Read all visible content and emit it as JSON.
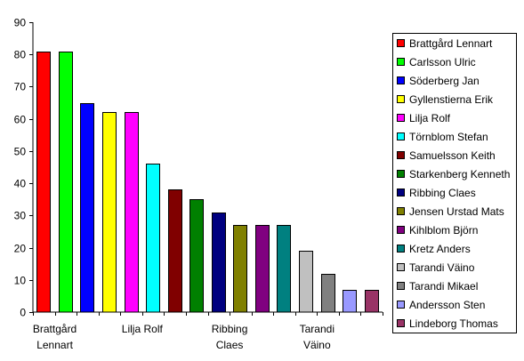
{
  "chart_data": {
    "type": "bar",
    "title": "",
    "xlabel": "",
    "ylabel": "",
    "ylim": [
      0,
      90
    ],
    "yticks": [
      0,
      10,
      20,
      30,
      40,
      50,
      60,
      70,
      80,
      90
    ],
    "grid": false,
    "legend_position": "right",
    "categories": [
      "Brattgård Lennart",
      "Carlsson Ulric",
      "Söderberg Jan",
      "Gyllenstierna Erik",
      "Lilja Rolf",
      "Törnblom Stefan",
      "Samuelsson Keith",
      "Starkenberg Kenneth",
      "Ribbing Claes",
      "Jensen Urstad Mats",
      "Kihlblom Björn",
      "Kretz Anders",
      "Tarandi Väino",
      "Tarandi Mikael",
      "Andersson Sten",
      "Lindeborg Thomas"
    ],
    "values": [
      81,
      81,
      65,
      62,
      62,
      46,
      38,
      35,
      31,
      27,
      27,
      27,
      19,
      12,
      7,
      7
    ],
    "colors": [
      "#ff0000",
      "#00ff00",
      "#0000ff",
      "#ffff00",
      "#ff00ff",
      "#00ffff",
      "#800000",
      "#008000",
      "#000080",
      "#808000",
      "#800080",
      "#008080",
      "#c0c0c0",
      "#808080",
      "#9999ff",
      "#993366"
    ],
    "x_tick_labels": [
      {
        "index": 0,
        "lines": [
          "Brattgård",
          "Lennart"
        ]
      },
      {
        "index": 4,
        "lines": [
          "Lilja Rolf"
        ]
      },
      {
        "index": 8,
        "lines": [
          "Ribbing",
          "Claes"
        ]
      },
      {
        "index": 12,
        "lines": [
          "Tarandi",
          "Väino"
        ]
      }
    ]
  }
}
